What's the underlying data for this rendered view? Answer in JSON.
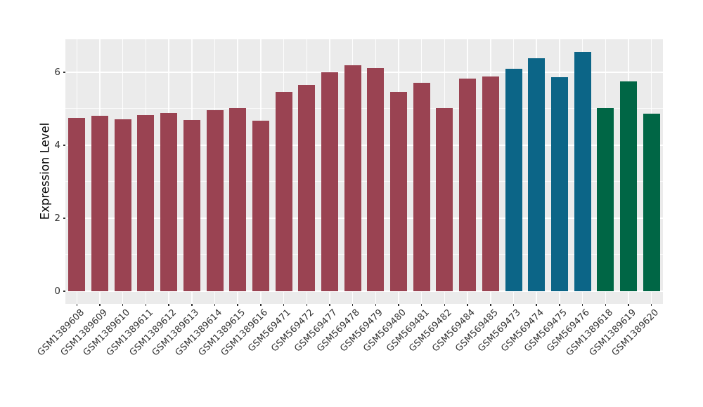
{
  "figure": {
    "panel_background": "#EBEBEB",
    "outer_background": "#FFFFFF",
    "grid_color": "#FFFFFF",
    "tick_color": "#333333",
    "axis_text_color": "#333333",
    "axis_title_color": "#000000"
  },
  "chart_data": {
    "type": "bar",
    "ylabel": "Expression Level",
    "legend": "none",
    "grid": true,
    "ylim": [
      -0.35,
      6.9
    ],
    "yticks": [
      0,
      2,
      4,
      6
    ],
    "ytick_labels": [
      "0",
      "2",
      "4",
      "6"
    ],
    "yticks_minor": [
      1,
      3,
      5
    ],
    "group_colors": {
      "maroon": "#9A4352",
      "teal": "#0C6587",
      "green": "#006645"
    },
    "categories": [
      "GSM1389608",
      "GSM1389609",
      "GSM1389610",
      "GSM1389611",
      "GSM1389612",
      "GSM1389613",
      "GSM1389614",
      "GSM1389615",
      "GSM1389616",
      "GSM569471",
      "GSM569472",
      "GSM569477",
      "GSM569478",
      "GSM569479",
      "GSM569480",
      "GSM569481",
      "GSM569482",
      "GSM569484",
      "GSM569485",
      "GSM569473",
      "GSM569474",
      "GSM569475",
      "GSM569476",
      "GSM1389618",
      "GSM1389619",
      "GSM1389620"
    ],
    "values": [
      4.75,
      4.8,
      4.7,
      4.83,
      4.88,
      4.68,
      4.95,
      5.01,
      4.66,
      5.46,
      5.65,
      6.0,
      6.19,
      6.12,
      5.45,
      5.7,
      5.01,
      5.82,
      5.88,
      6.09,
      6.38,
      5.87,
      6.56,
      5.02,
      5.75,
      4.87
    ],
    "colors": [
      "#9A4352",
      "#9A4352",
      "#9A4352",
      "#9A4352",
      "#9A4352",
      "#9A4352",
      "#9A4352",
      "#9A4352",
      "#9A4352",
      "#9A4352",
      "#9A4352",
      "#9A4352",
      "#9A4352",
      "#9A4352",
      "#9A4352",
      "#9A4352",
      "#9A4352",
      "#9A4352",
      "#9A4352",
      "#0C6587",
      "#0C6587",
      "#0C6587",
      "#0C6587",
      "#006645",
      "#006645",
      "#006645"
    ]
  }
}
